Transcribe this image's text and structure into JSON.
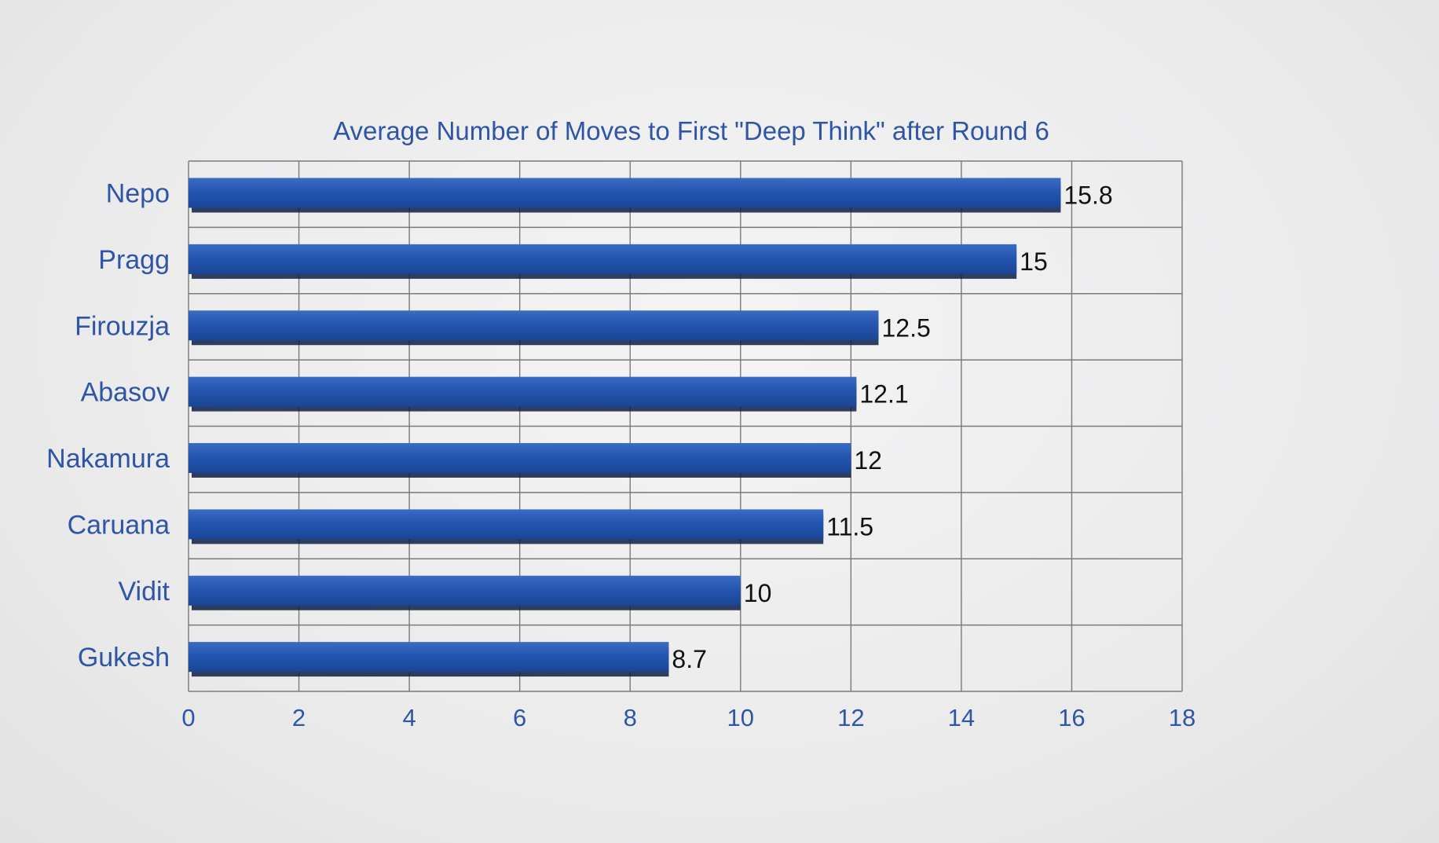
{
  "chart_data": {
    "type": "bar",
    "orientation": "horizontal",
    "title": "Average Number of Moves to First \"Deep Think\" after Round 6",
    "categories": [
      "Nepo",
      "Pragg",
      "Firouzja",
      "Abasov",
      "Nakamura",
      "Caruana",
      "Vidit",
      "Gukesh"
    ],
    "values": [
      15.8,
      15,
      12.5,
      12.1,
      12,
      11.5,
      10,
      8.7
    ],
    "value_labels": [
      "15.8",
      "15",
      "12.5",
      "12.1",
      "12",
      "11.5",
      "10",
      "8.7"
    ],
    "xlim": [
      0,
      18
    ],
    "xticks": [
      "0",
      "2",
      "4",
      "6",
      "8",
      "10",
      "12",
      "14",
      "16",
      "18"
    ],
    "grid": true,
    "colors": {
      "bar": "#2456b0",
      "bar_edge": "#0d1f45",
      "text": "#2f55a6",
      "grid": "#7a7a7a"
    }
  }
}
